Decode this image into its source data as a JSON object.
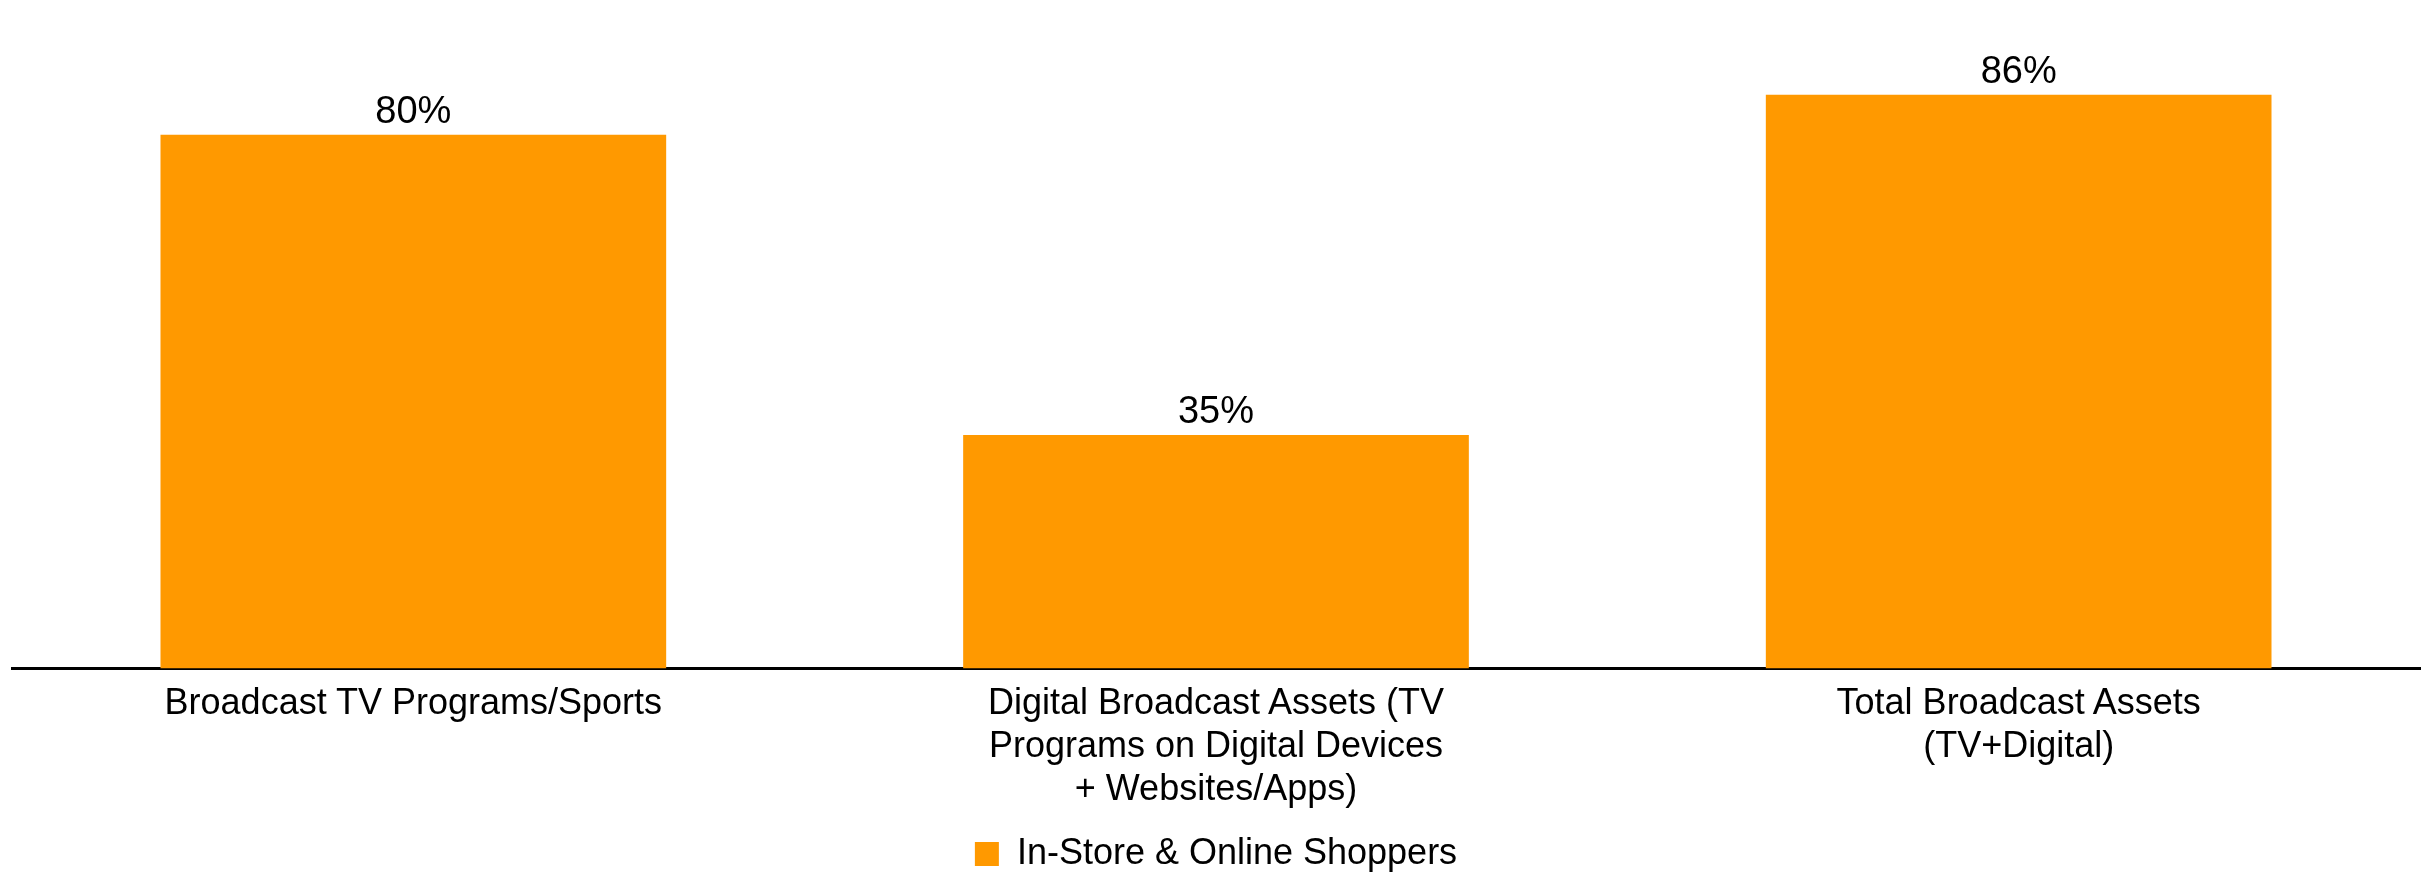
{
  "chart_data": {
    "type": "bar",
    "categories": [
      "Broadcast TV Programs/Sports",
      "Digital Broadcast Assets (TV Programs on Digital Devices + Websites/Apps)",
      "Total Broadcast Assets (TV+Digital)"
    ],
    "series": [
      {
        "name": "In-Store & Online Shoppers",
        "color": "#ff9900",
        "values": [
          80,
          35,
          86
        ],
        "value_labels": [
          "80%",
          "35%",
          "86%"
        ]
      }
    ],
    "legend": "bottom",
    "grid": false
  }
}
